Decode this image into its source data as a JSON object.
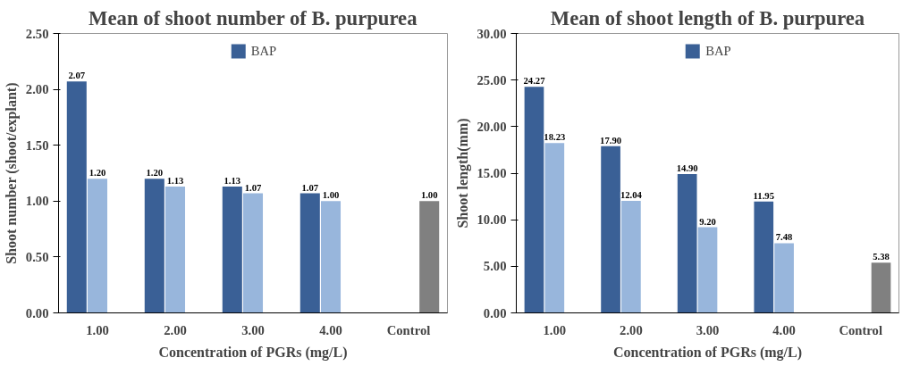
{
  "chart_data": [
    {
      "type": "bar",
      "title": "Mean of shoot number of B. purpurea",
      "xlabel": "Concentration of PGRs (mg/L)",
      "ylabel": "Shoot number (shoot/explant)",
      "categories": [
        "1.00",
        "2.00",
        "3.00",
        "4.00",
        "Control"
      ],
      "series": [
        {
          "name": "BAP",
          "color": "#3a6096",
          "values": [
            2.07,
            1.2,
            1.13,
            1.07,
            null
          ],
          "value_labels": [
            "2.07",
            "1.20",
            "1.13",
            "1.07",
            null
          ]
        },
        {
          "color": "#98b6dc",
          "values": [
            1.2,
            1.13,
            1.07,
            1.0,
            null
          ],
          "value_labels": [
            "1.20",
            "1.13",
            "1.07",
            "1.00",
            null
          ]
        },
        {
          "color": "#808080",
          "values": [
            null,
            null,
            null,
            null,
            1.0
          ],
          "value_labels": [
            null,
            null,
            null,
            null,
            "1.00"
          ]
        }
      ],
      "ylim": [
        0,
        2.5
      ],
      "yticks": [
        {
          "value": 0,
          "label": "0.00"
        },
        {
          "value": 0.5,
          "label": "0.50"
        },
        {
          "value": 1,
          "label": "1.00"
        },
        {
          "value": 1.5,
          "label": "1.50"
        },
        {
          "value": 2,
          "label": "2.00"
        },
        {
          "value": 2.5,
          "label": "2.50"
        }
      ],
      "grid": false,
      "legend": "top"
    },
    {
      "type": "bar",
      "title": "Mean of shoot length of B. purpurea",
      "xlabel": "Concentration of PGRs (mg/L)",
      "ylabel": "Shoot length(mm)",
      "categories": [
        "1.00",
        "2.00",
        "3.00",
        "4.00",
        "Control"
      ],
      "series": [
        {
          "name": "BAP",
          "color": "#3a6096",
          "values": [
            24.27,
            17.9,
            14.9,
            11.95,
            null
          ],
          "value_labels": [
            "24.27",
            "17.90",
            "14.90",
            "11.95",
            null
          ]
        },
        {
          "color": "#98b6dc",
          "values": [
            18.23,
            12.04,
            9.2,
            7.48,
            null
          ],
          "value_labels": [
            "18.23",
            "12.04",
            "9.20",
            "7.48",
            null
          ]
        },
        {
          "color": "#808080",
          "values": [
            null,
            null,
            null,
            null,
            5.38
          ],
          "value_labels": [
            null,
            null,
            null,
            null,
            "5.38"
          ]
        }
      ],
      "ylim": [
        0,
        30
      ],
      "yticks": [
        {
          "value": 0,
          "label": "0.00"
        },
        {
          "value": 5,
          "label": "5.00"
        },
        {
          "value": 10,
          "label": "10.00"
        },
        {
          "value": 15,
          "label": "15.00"
        },
        {
          "value": 20,
          "label": "20.00"
        },
        {
          "value": 25,
          "label": "25.00"
        },
        {
          "value": 30,
          "label": "30.00"
        }
      ],
      "grid": false,
      "legend": "top"
    }
  ]
}
